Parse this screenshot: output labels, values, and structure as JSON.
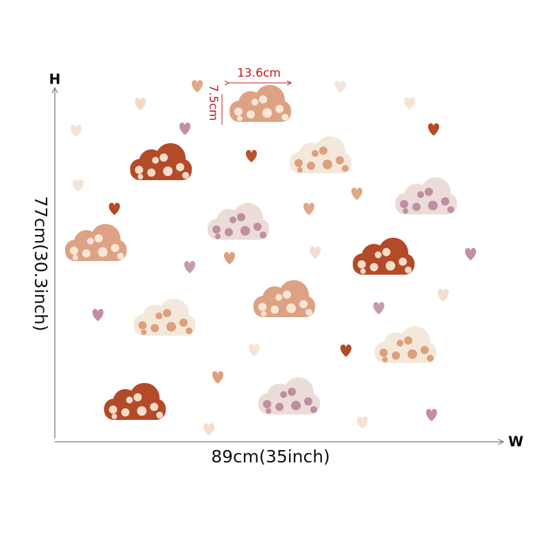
{
  "labels": {
    "height_marker": "H",
    "width_marker": "W",
    "height": "77cm(30.3inch)",
    "width": "89cm(35inch)",
    "cloud_width": "13.6cm",
    "cloud_height": "7.5cm"
  }
}
